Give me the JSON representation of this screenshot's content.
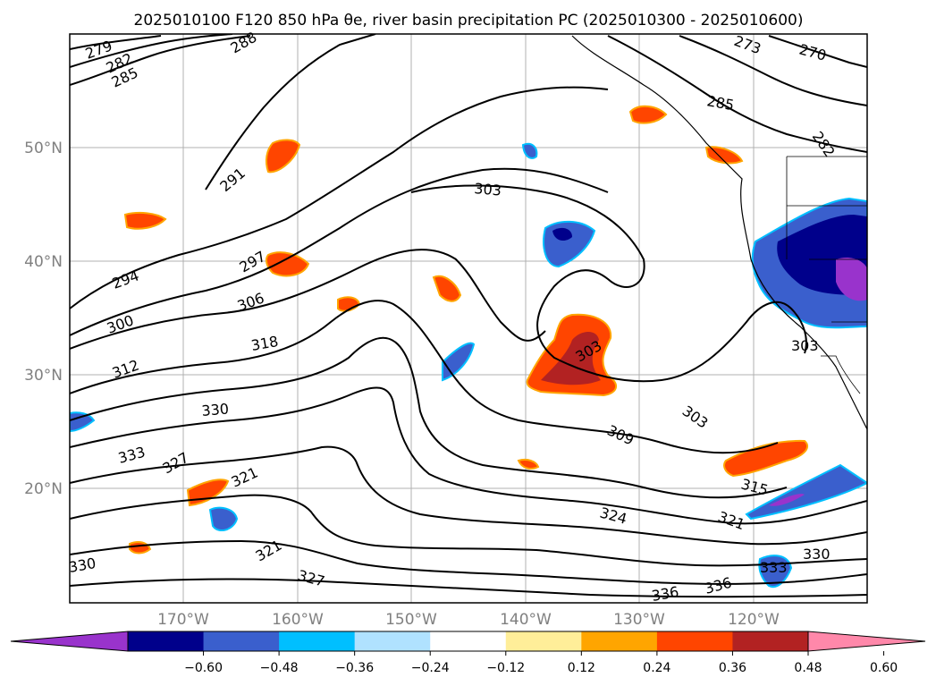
{
  "title": "2025010100 F120 850 hPa θe, river basin precipitation PC (2025010300 - 2025010600)",
  "map": {
    "lat_labels": [
      "50°N",
      "40°N",
      "30°N",
      "20°N"
    ],
    "lon_labels": [
      "170°W",
      "160°W",
      "150°W",
      "140°W",
      "130°W",
      "120°W"
    ],
    "contour_labels": [
      "279",
      "282",
      "285",
      "288",
      "291",
      "294",
      "297",
      "300",
      "303",
      "306",
      "309",
      "312",
      "315",
      "318",
      "321",
      "324",
      "327",
      "330",
      "333",
      "336",
      "270",
      "273"
    ]
  },
  "colorbar": {
    "colors": [
      "#9933cc",
      "#00008b",
      "#3a5fcd",
      "#00bfff",
      "#b0e2ff",
      "#ffffff",
      "#ffee99",
      "#ffa500",
      "#ff4500",
      "#b22222",
      "#ff88aa"
    ],
    "tick_labels": [
      "−0.60",
      "−0.48",
      "−0.36",
      "−0.24",
      "−0.12",
      "0.12",
      "0.24",
      "0.36",
      "0.48",
      "0.60"
    ]
  }
}
